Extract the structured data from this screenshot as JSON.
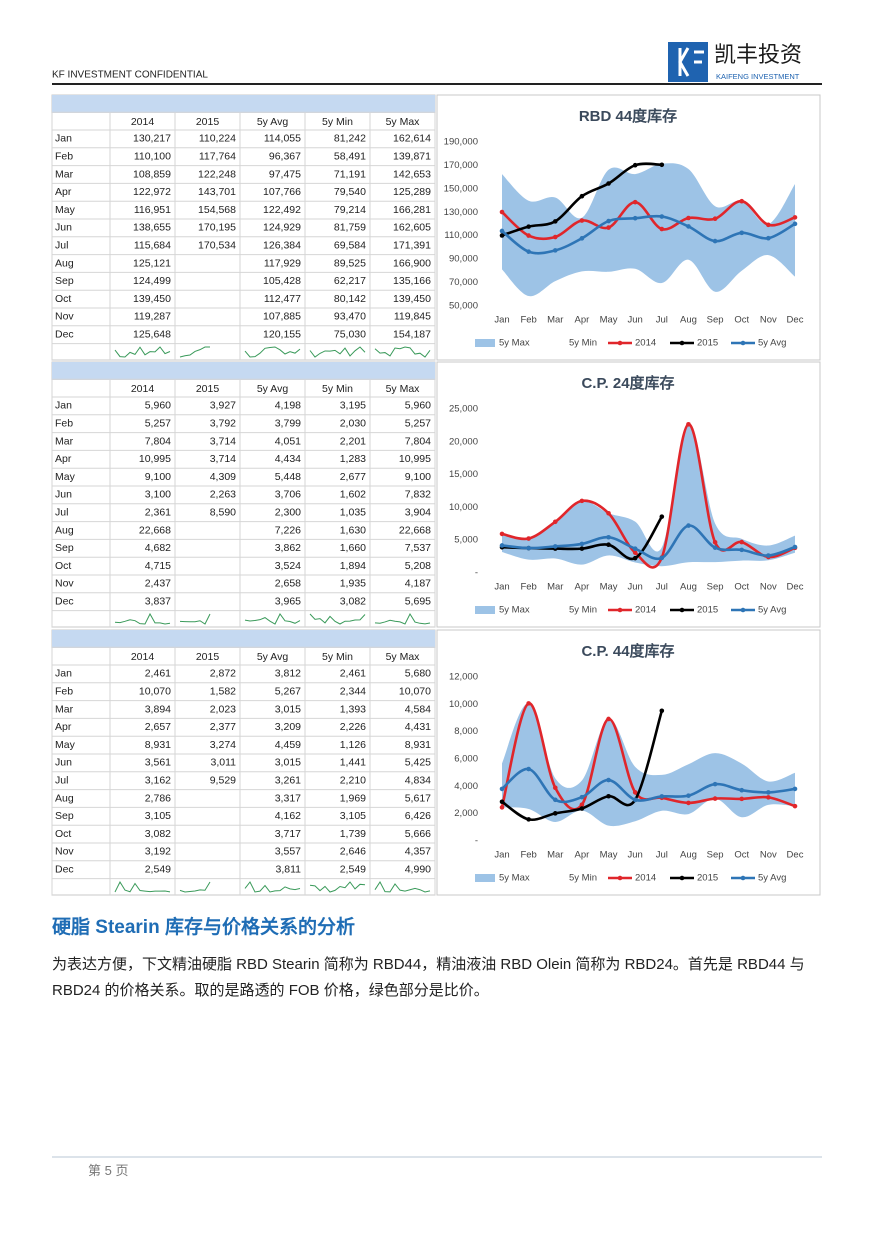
{
  "header": {
    "confidential": "KF INVESTMENT CONFIDENTIAL",
    "logo_cn": "凯丰投资",
    "logo_en": "KAIFENG INVESTMENT"
  },
  "chart_data": [
    {
      "type": "line",
      "title": "RBD 44度库存",
      "categories": [
        "Jan",
        "Feb",
        "Mar",
        "Apr",
        "May",
        "Jun",
        "Jul",
        "Aug",
        "Sep",
        "Oct",
        "Nov",
        "Dec"
      ],
      "ylim": [
        50000,
        190000
      ],
      "yticks": [
        {
          "value": 50000,
          "label": "50,000"
        },
        {
          "value": 70000,
          "label": "70,000"
        },
        {
          "value": 90000,
          "label": "90,000"
        },
        {
          "value": 110000,
          "label": "110,000"
        },
        {
          "value": 130000,
          "label": "130,000"
        },
        {
          "value": 150000,
          "label": "150,000"
        },
        {
          "value": 170000,
          "label": "170,000"
        },
        {
          "value": 190000,
          "label": "190,000"
        }
      ],
      "series": [
        {
          "name": "5y Max",
          "kind": "area",
          "color": "#9dc3e6",
          "values": [
            162614,
            139871,
            142653,
            125289,
            166281,
            162605,
            171391,
            166900,
            135166,
            139450,
            119845,
            154187
          ]
        },
        {
          "name": "5y Min",
          "kind": "area",
          "color": "#ffffff",
          "values": [
            81242,
            58491,
            71191,
            79540,
            79214,
            81759,
            69584,
            89525,
            62217,
            80142,
            93470,
            75030
          ]
        },
        {
          "name": "2014",
          "kind": "line",
          "color": "#e0262b",
          "values": [
            130217,
            110100,
            108859,
            122972,
            116951,
            138655,
            115684,
            125121,
            124499,
            139450,
            119287,
            125648
          ]
        },
        {
          "name": "2015",
          "kind": "line",
          "color": "#000000",
          "values": [
            110224,
            117764,
            122248,
            143701,
            154568,
            170195,
            170534,
            null,
            null,
            null,
            null,
            null
          ]
        },
        {
          "name": "5y Avg",
          "kind": "line",
          "color": "#2e75b6",
          "values": [
            114055,
            96367,
            97475,
            107766,
            122492,
            124929,
            126384,
            117929,
            105428,
            112477,
            107885,
            120155
          ]
        }
      ]
    },
    {
      "type": "line",
      "title": "C.P. 24度库存",
      "categories": [
        "Jan",
        "Feb",
        "Mar",
        "Apr",
        "May",
        "Jun",
        "Jul",
        "Aug",
        "Sep",
        "Oct",
        "Nov",
        "Dec"
      ],
      "ylim": [
        0,
        25000
      ],
      "yticks": [
        {
          "value": 0,
          "label": "-"
        },
        {
          "value": 5000,
          "label": "5,000"
        },
        {
          "value": 10000,
          "label": "10,000"
        },
        {
          "value": 15000,
          "label": "15,000"
        },
        {
          "value": 20000,
          "label": "20,000"
        },
        {
          "value": 25000,
          "label": "25,000"
        }
      ],
      "series": [
        {
          "name": "5y Max",
          "kind": "area",
          "color": "#9dc3e6",
          "values": [
            5960,
            5257,
            7804,
            10995,
            9100,
            7832,
            3904,
            22668,
            7537,
            5208,
            4187,
            5695
          ]
        },
        {
          "name": "5y Min",
          "kind": "area",
          "color": "#ffffff",
          "values": [
            3195,
            2030,
            2201,
            1283,
            2677,
            1602,
            1035,
            1630,
            1660,
            1894,
            1935,
            3082
          ]
        },
        {
          "name": "2014",
          "kind": "line",
          "color": "#e0262b",
          "values": [
            5960,
            5257,
            7804,
            10995,
            9100,
            3100,
            2361,
            22668,
            4682,
            4715,
            2437,
            3837
          ]
        },
        {
          "name": "2015",
          "kind": "line",
          "color": "#000000",
          "values": [
            3927,
            3792,
            3714,
            3714,
            4309,
            2263,
            8590,
            null,
            null,
            null,
            null,
            null
          ]
        },
        {
          "name": "5y Avg",
          "kind": "line",
          "color": "#2e75b6",
          "values": [
            4198,
            3799,
            4051,
            4434,
            5448,
            3706,
            2300,
            7226,
            3862,
            3524,
            2658,
            3965
          ]
        }
      ]
    },
    {
      "type": "line",
      "title": "C.P. 44度库存",
      "categories": [
        "Jan",
        "Feb",
        "Mar",
        "Apr",
        "May",
        "Jun",
        "Jul",
        "Aug",
        "Sep",
        "Oct",
        "Nov",
        "Dec"
      ],
      "ylim": [
        0,
        12000
      ],
      "yticks": [
        {
          "value": 0,
          "label": "-"
        },
        {
          "value": 2000,
          "label": "2,000"
        },
        {
          "value": 4000,
          "label": "4,000"
        },
        {
          "value": 6000,
          "label": "6,000"
        },
        {
          "value": 8000,
          "label": "8,000"
        },
        {
          "value": 10000,
          "label": "10,000"
        },
        {
          "value": 12000,
          "label": "12,000"
        }
      ],
      "series": [
        {
          "name": "5y Max",
          "kind": "area",
          "color": "#9dc3e6",
          "values": [
            5680,
            10070,
            4584,
            4431,
            8931,
            5425,
            4834,
            5617,
            6426,
            5666,
            4357,
            4990
          ]
        },
        {
          "name": "5y Min",
          "kind": "area",
          "color": "#ffffff",
          "values": [
            2461,
            2344,
            1393,
            2226,
            1126,
            1441,
            2210,
            1969,
            3105,
            1739,
            2646,
            2549
          ]
        },
        {
          "name": "2014",
          "kind": "line",
          "color": "#e0262b",
          "values": [
            2461,
            10070,
            3894,
            2657,
            8931,
            3561,
            3162,
            2786,
            3105,
            3082,
            3192,
            2549
          ]
        },
        {
          "name": "2015",
          "kind": "line",
          "color": "#000000",
          "values": [
            2872,
            1582,
            2023,
            2377,
            3274,
            3011,
            9529,
            null,
            null,
            null,
            null,
            null
          ]
        },
        {
          "name": "5y Avg",
          "kind": "line",
          "color": "#2e75b6",
          "values": [
            3812,
            5267,
            3015,
            3209,
            4459,
            3015,
            3261,
            3317,
            4162,
            3717,
            3557,
            3811
          ]
        }
      ]
    }
  ],
  "heading": "硬脂 Stearin 库存与价格关系的分析",
  "paragraph": "为表达方便，下文精油硬脂 RBD Stearin 简称为 RBD44，精油液油 RBD Olein 简称为 RBD24。首先是 RBD44 与 RBD24 的价格关系。取的是路透的 FOB 价格，绿色部分是比价。",
  "footer": "第 5 页"
}
